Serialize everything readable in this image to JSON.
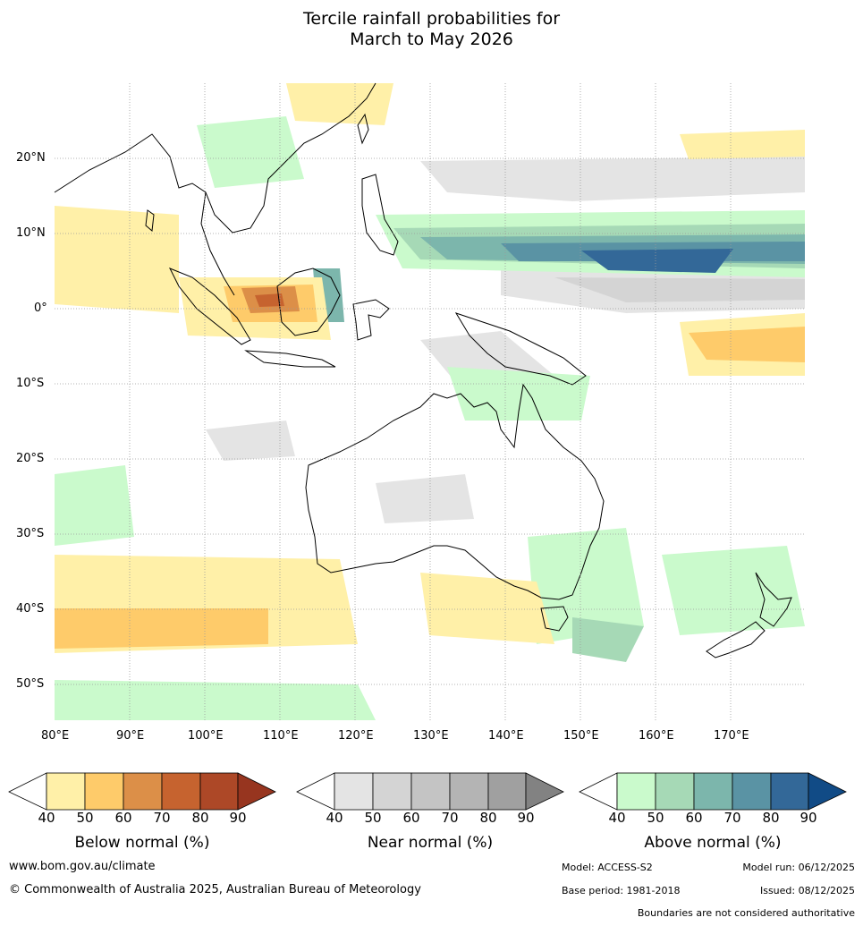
{
  "title": {
    "line1": "Tercile rainfall probabilities for",
    "line2": "March to May 2026"
  },
  "map": {
    "lon_labels": [
      "80°E",
      "90°E",
      "100°E",
      "110°E",
      "120°E",
      "130°E",
      "140°E",
      "150°E",
      "160°E",
      "170°E"
    ],
    "lat_labels": [
      "20°N",
      "10°N",
      "0°",
      "10°S",
      "20°S",
      "30°S",
      "40°S",
      "50°S"
    ]
  },
  "colorbars": {
    "below": {
      "title": "Below normal (%)",
      "ticks": [
        "40",
        "50",
        "60",
        "70",
        "80",
        "90"
      ],
      "colors": [
        "#fff0a8",
        "#fecb6a",
        "#dc8f48",
        "#c6632f",
        "#ad4827",
        "#97351f"
      ]
    },
    "near": {
      "title": "Near normal (%)",
      "ticks": [
        "40",
        "50",
        "60",
        "70",
        "80",
        "90"
      ],
      "colors": [
        "#e4e4e4",
        "#d4d4d4",
        "#c4c4c4",
        "#b4b4b4",
        "#a0a0a0",
        "#828282"
      ]
    },
    "above": {
      "title": "Above normal (%)",
      "ticks": [
        "40",
        "50",
        "60",
        "70",
        "80",
        "90"
      ],
      "colors": [
        "#cafacc",
        "#a6d9b6",
        "#7cb6ac",
        "#5a93a4",
        "#336898",
        "#114b86"
      ]
    }
  },
  "footer": {
    "website": "www.bom.gov.au/climate",
    "copyright": "© Commonwealth of Australia 2025, Australian Bureau of Meteorology",
    "model": "Model: ACCESS-S2",
    "model_run": "Model run: 06/12/2025",
    "base_period": "Base period: 1981-2018",
    "issued": "Issued: 08/12/2025",
    "boundaries": "Boundaries are not considered authoritative"
  }
}
